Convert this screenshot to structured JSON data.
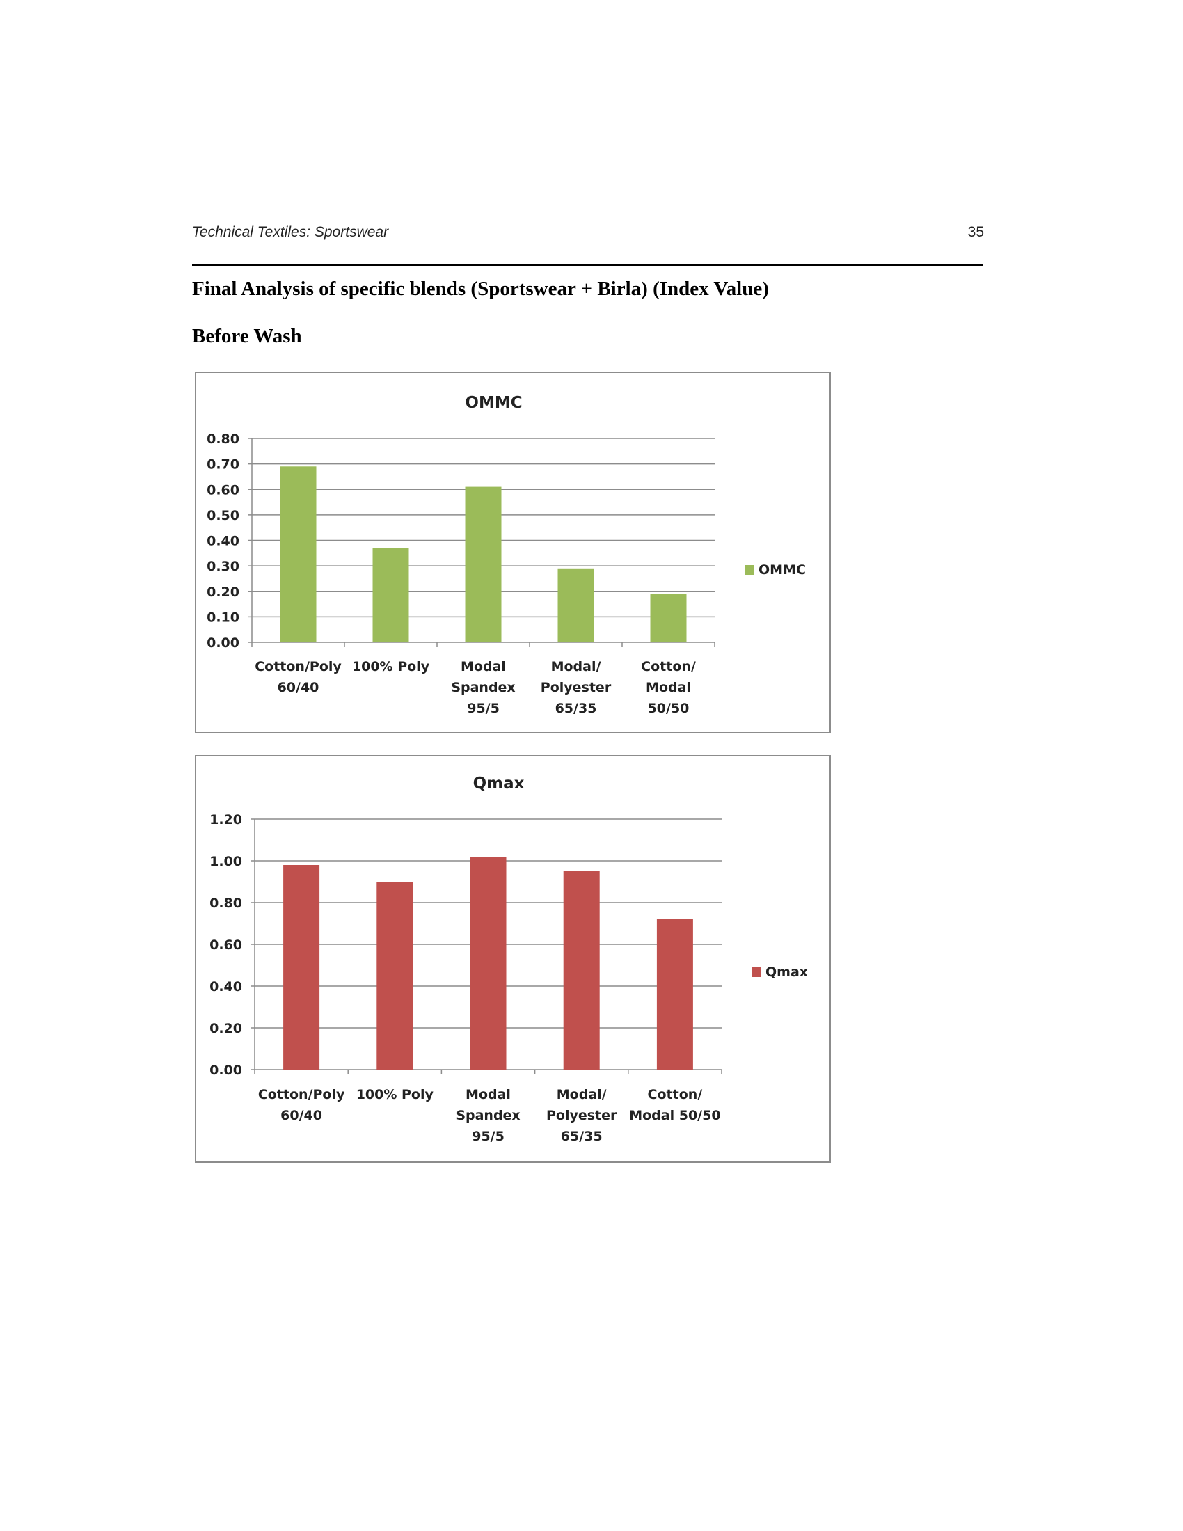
{
  "header": {
    "running_head": "Technical Textiles: Sportswear",
    "page_number": "35"
  },
  "document": {
    "title": "Final Analysis of specific blends (Sportswear + Birla) (Index Value)",
    "subtitle": "Before Wash"
  },
  "chart_data": [
    {
      "type": "bar",
      "title": "OMMC",
      "categories": [
        [
          "Cotton/Poly",
          "60/40"
        ],
        [
          "100% Poly"
        ],
        [
          "Modal",
          "Spandex",
          "95/5"
        ],
        [
          "Modal/",
          "Polyester",
          "65/35"
        ],
        [
          "Cotton/",
          "Modal",
          "50/50"
        ]
      ],
      "series": [
        {
          "name": "OMMC",
          "values": [
            0.69,
            0.37,
            0.61,
            0.29,
            0.19
          ]
        }
      ],
      "ylim": [
        0,
        0.8
      ],
      "yticks": [
        "0.00",
        "0.10",
        "0.20",
        "0.30",
        "0.40",
        "0.50",
        "0.60",
        "0.70",
        "0.80"
      ],
      "color": "#9bbb59",
      "grid": true,
      "legend": "right"
    },
    {
      "type": "bar",
      "title": "Qmax",
      "categories": [
        [
          "Cotton/Poly",
          "60/40"
        ],
        [
          "100% Poly"
        ],
        [
          "Modal",
          "Spandex",
          "95/5"
        ],
        [
          "Modal/",
          "Polyester",
          "65/35"
        ],
        [
          "Cotton/",
          "Modal 50/50"
        ]
      ],
      "series": [
        {
          "name": "Qmax",
          "values": [
            0.98,
            0.9,
            1.02,
            0.95,
            0.72
          ]
        }
      ],
      "ylim": [
        0,
        1.2
      ],
      "yticks": [
        "0.00",
        "0.20",
        "0.40",
        "0.60",
        "0.80",
        "1.00",
        "1.20"
      ],
      "color": "#c0504d",
      "grid": true,
      "legend": "right"
    }
  ]
}
